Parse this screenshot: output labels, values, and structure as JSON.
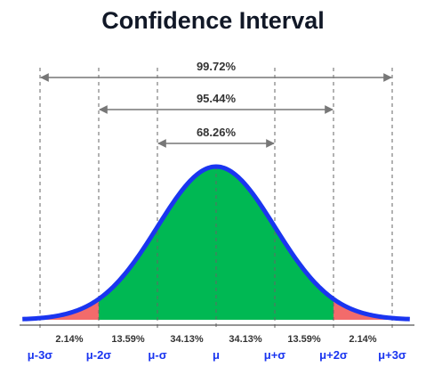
{
  "chart_data": {
    "type": "area",
    "title": "Confidence Interval",
    "x_ticks": [
      {
        "x": -3,
        "label": "μ-3σ"
      },
      {
        "x": -2,
        "label": "μ-2σ"
      },
      {
        "x": -1,
        "label": "μ-σ"
      },
      {
        "x": 0,
        "label": "μ"
      },
      {
        "x": 1,
        "label": "μ+σ"
      },
      {
        "x": 2,
        "label": "μ+2σ"
      },
      {
        "x": 3,
        "label": "μ+3σ"
      }
    ],
    "xlim": [
      -3.3,
      3.3
    ],
    "regions": [
      {
        "from": -3,
        "to": -2,
        "label": "2.14%",
        "color": "#f26b6b"
      },
      {
        "from": -2,
        "to": -1,
        "label": "13.59%",
        "color": "#00b853"
      },
      {
        "from": -1,
        "to": 0,
        "label": "34.13%",
        "color": "#00b853"
      },
      {
        "from": 0,
        "to": 1,
        "label": "34.13%",
        "color": "#00b853"
      },
      {
        "from": 1,
        "to": 2,
        "label": "13.59%",
        "color": "#00b853"
      },
      {
        "from": 2,
        "to": 3,
        "label": "2.14%",
        "color": "#f26b6b"
      }
    ],
    "intervals": [
      {
        "k": 3,
        "label": "99.72%"
      },
      {
        "k": 2,
        "label": "95.44%"
      },
      {
        "k": 1,
        "label": "68.26%"
      }
    ],
    "colors": {
      "curve": "#1a35f0",
      "tick_label": "#1a35f0",
      "center_fill": "#00b853",
      "tail_fill": "#f26b6b",
      "guides": "#666666",
      "arrows": "#777777",
      "text": "#333333"
    }
  }
}
